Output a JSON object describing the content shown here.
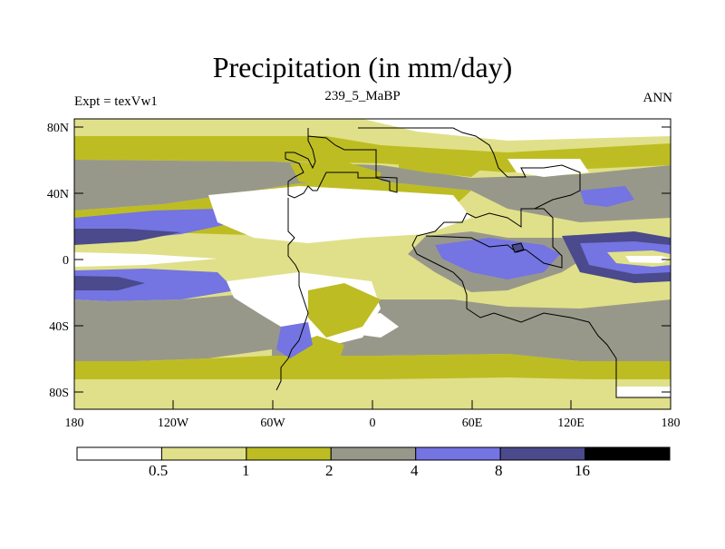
{
  "title": "Precipitation (in mm/day)",
  "subtitle_left": "Expt = texVw1",
  "subtitle_center": "239_5_MaBP",
  "subtitle_right": "ANN",
  "lat_labels": [
    "80N",
    "40N",
    "0",
    "40S",
    "80S"
  ],
  "lon_labels": [
    "180",
    "120W",
    "60W",
    "0",
    "60E",
    "120E",
    "180"
  ],
  "colorbar": {
    "colors": [
      "#ffffff",
      "#e0e08a",
      "#bdbd23",
      "#98988a",
      "#7474e2",
      "#4a4a8c",
      "#000000"
    ],
    "labels": [
      "0.5",
      "1",
      "2",
      "4",
      "8",
      "16"
    ]
  }
}
